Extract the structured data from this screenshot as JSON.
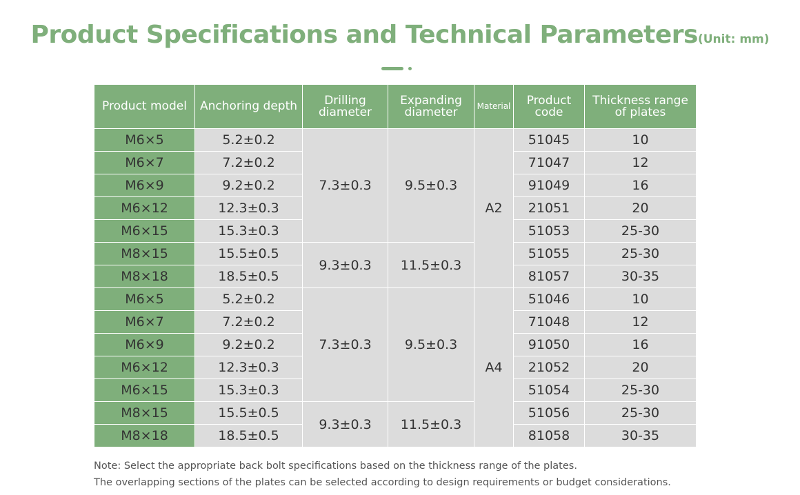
{
  "header": {
    "title": "Product Specifications and Technical Parameters",
    "unit": "(Unit: mm)"
  },
  "colors": {
    "accent": "#7faf7b",
    "cell_grey": "#dcdcdc"
  },
  "table": {
    "headers": {
      "model": "Product model",
      "anchoring": "Anchoring depth",
      "drilling": "Drilling diameter",
      "expanding": "Expanding diameter",
      "material": "Material",
      "code": "Product code",
      "thickness": "Thickness range of plates"
    },
    "rows": [
      {
        "model": "M6×5",
        "anchoring": "5.2±0.2",
        "code": "51045",
        "thickness": "10"
      },
      {
        "model": "M6×7",
        "anchoring": "7.2±0.2",
        "code": "71047",
        "thickness": "12"
      },
      {
        "model": "M6×9",
        "anchoring": "9.2±0.2",
        "code": "91049",
        "thickness": "16"
      },
      {
        "model": "M6×12",
        "anchoring": "12.3±0.3",
        "code": "21051",
        "thickness": "20"
      },
      {
        "model": "M6×15",
        "anchoring": "15.3±0.3",
        "code": "51053",
        "thickness": "25-30"
      },
      {
        "model": "M8×15",
        "anchoring": "15.5±0.5",
        "code": "51055",
        "thickness": "25-30"
      },
      {
        "model": "M8×18",
        "anchoring": "18.5±0.5",
        "code": "81057",
        "thickness": "30-35"
      },
      {
        "model": "M6×5",
        "anchoring": "5.2±0.2",
        "code": "51046",
        "thickness": "10"
      },
      {
        "model": "M6×7",
        "anchoring": "7.2±0.2",
        "code": "71048",
        "thickness": "12"
      },
      {
        "model": "M6×9",
        "anchoring": "9.2±0.2",
        "code": "91050",
        "thickness": "16"
      },
      {
        "model": "M6×12",
        "anchoring": "12.3±0.3",
        "code": "21052",
        "thickness": "20"
      },
      {
        "model": "M6×15",
        "anchoring": "15.3±0.3",
        "code": "51054",
        "thickness": "25-30"
      },
      {
        "model": "M8×15",
        "anchoring": "15.5±0.5",
        "code": "51056",
        "thickness": "25-30"
      },
      {
        "model": "M8×18",
        "anchoring": "18.5±0.5",
        "code": "81058",
        "thickness": "30-35"
      }
    ],
    "groups": [
      {
        "drilling": "7.3±0.3",
        "expanding": "9.5±0.3"
      },
      {
        "drilling": "9.3±0.3",
        "expanding": "11.5±0.3"
      },
      {
        "drilling": "7.3±0.3",
        "expanding": "9.5±0.3"
      },
      {
        "drilling": "9.3±0.3",
        "expanding": "11.5±0.3"
      }
    ],
    "materials": [
      "A2",
      "A4"
    ]
  },
  "notes": {
    "line1": "Note: Select the appropriate back bolt specifications based on the thickness range of the plates.",
    "line2": "The overlapping sections of the plates can be selected according to design requirements or budget considerations."
  }
}
